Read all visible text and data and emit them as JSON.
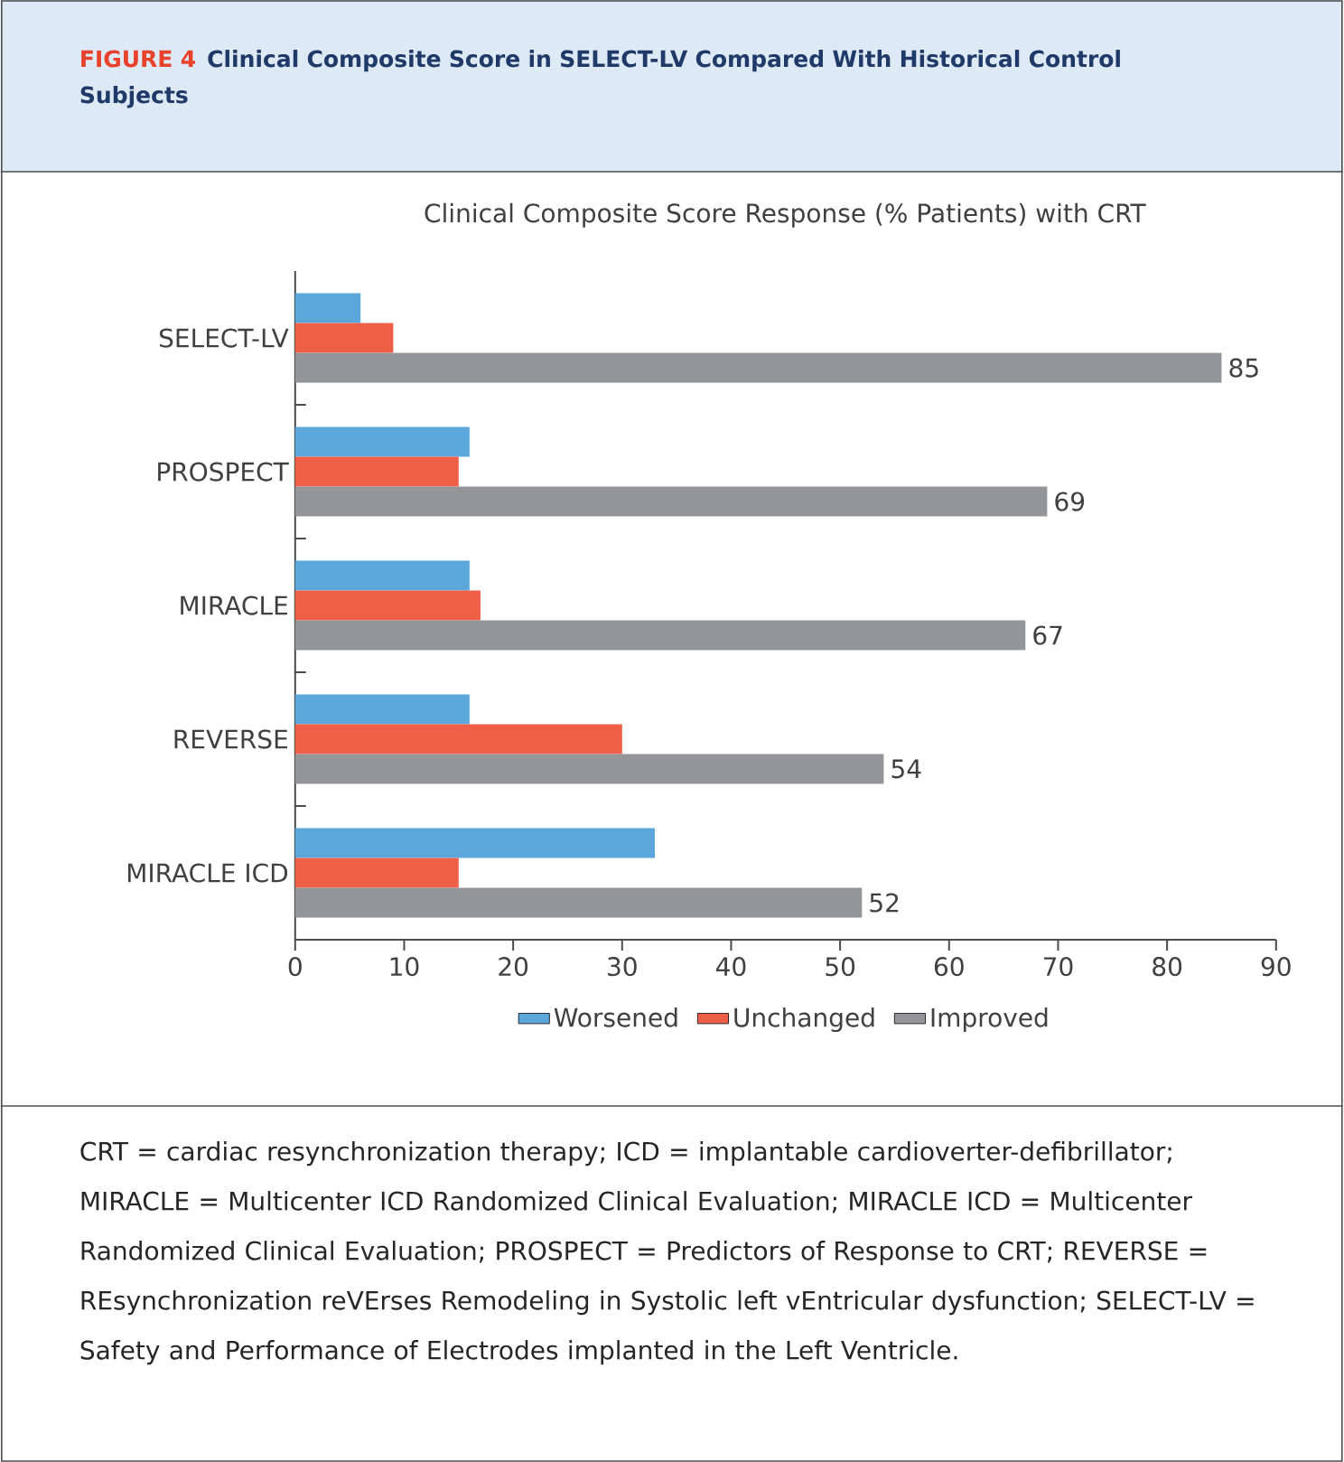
{
  "chart_data": {
    "type": "bar",
    "orientation": "horizontal",
    "title": "Clinical Composite Score Response (% Patients) with CRT",
    "categories": [
      "SELECT-LV",
      "PROSPECT",
      "MIRACLE",
      "REVERSE",
      "MIRACLE ICD"
    ],
    "series": [
      {
        "name": "Worsened",
        "color": "#5ba7db",
        "values": [
          6,
          16,
          16,
          16,
          33
        ]
      },
      {
        "name": "Unchanged",
        "color": "#ef5f48",
        "values": [
          9,
          15,
          17,
          30,
          15
        ]
      },
      {
        "name": "Improved",
        "color": "#939598",
        "values": [
          85,
          69,
          67,
          54,
          52
        ],
        "value_labels": [
          "85",
          "69",
          "67",
          "54",
          "52"
        ]
      }
    ],
    "xlim": [
      0,
      90
    ],
    "xticks": [
      0,
      10,
      20,
      30,
      40,
      50,
      60,
      70,
      80,
      90
    ],
    "legend": "bottom",
    "grid": false,
    "annotations": [
      "FIGURE 4",
      "Clinical Composite Score in SELECT-LV Compared With Historical Control Subjects",
      "CRT = cardiac resynchronization therapy; ICD = implantable cardioverter-defibrillator; MIRACLE = Multicenter ICD Randomized Clinical Evaluation; MIRACLE ICD = Multicenter Randomized Clinical Evaluation; PROSPECT = Predictors of Response to CRT; REVERSE = REsynchronization reVErses Remodeling in Systolic left vEntricular dysfunction; SELECT-LV = Safety and Performance of Electrodes implanted in the Left Ventricle."
    ]
  }
}
